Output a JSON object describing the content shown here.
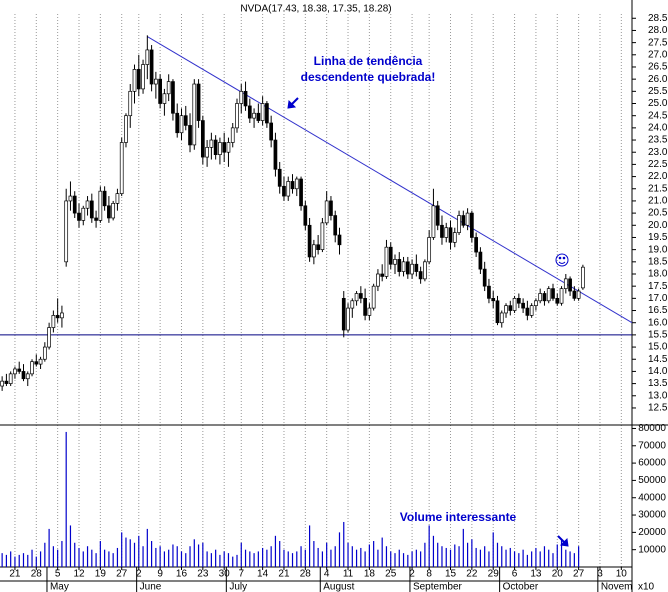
{
  "chart_data": {
    "type": "candlestick",
    "title": "NVDA(17.43, 18.38, 17.35, 18.28)",
    "categories": [
      null,
      null,
      null,
      "21",
      null,
      null,
      null,
      null,
      "28",
      null,
      null,
      null,
      null,
      "5",
      null,
      null,
      null,
      null,
      "12",
      null,
      null,
      null,
      null,
      "19",
      null,
      null,
      null,
      null,
      "27",
      null,
      null,
      null,
      "2",
      null,
      null,
      null,
      null,
      "9",
      null,
      null,
      null,
      null,
      "16",
      null,
      null,
      null,
      null,
      "23",
      null,
      null,
      null,
      null,
      "30",
      null,
      null,
      null,
      "7",
      null,
      null,
      null,
      null,
      "14",
      null,
      null,
      null,
      null,
      "21",
      null,
      null,
      null,
      null,
      "28",
      null,
      null,
      null,
      null,
      "4",
      null,
      null,
      null,
      null,
      "11",
      null,
      null,
      null,
      null,
      "18",
      null,
      null,
      null,
      null,
      "25",
      null,
      null,
      null,
      null,
      "2",
      null,
      null,
      null,
      "8",
      null,
      null,
      null,
      null,
      "15",
      null,
      null,
      null,
      null,
      "22",
      null,
      null,
      null,
      null,
      "29",
      null,
      null,
      null,
      null,
      "6",
      null,
      null,
      null,
      null,
      "13",
      null,
      null,
      null,
      null,
      "20",
      null,
      null,
      null,
      null,
      "27",
      null,
      null,
      null,
      null,
      "3",
      null,
      null,
      null,
      null,
      "10",
      null,
      null
    ],
    "months": [
      "May",
      "June",
      "July",
      "August",
      "September",
      "October",
      "Novem"
    ],
    "ohlc": [
      [
        13.4,
        13.8,
        13.2,
        13.6
      ],
      [
        13.6,
        13.9,
        13.4,
        13.5
      ],
      [
        13.5,
        14.0,
        13.4,
        13.9
      ],
      [
        13.9,
        14.2,
        13.7,
        14.1
      ],
      [
        14.1,
        14.4,
        13.9,
        14.0
      ],
      [
        14.0,
        14.3,
        13.6,
        13.7
      ],
      [
        13.7,
        14.0,
        13.4,
        13.9
      ],
      [
        13.9,
        14.5,
        13.8,
        14.4
      ],
      [
        14.4,
        14.7,
        14.2,
        14.3
      ],
      [
        14.3,
        14.6,
        14.1,
        14.5
      ],
      [
        14.5,
        15.2,
        14.4,
        15.0
      ],
      [
        15.0,
        16.0,
        14.9,
        15.8
      ],
      [
        15.8,
        16.5,
        15.6,
        16.3
      ],
      [
        16.3,
        17.0,
        16.0,
        16.2
      ],
      [
        16.2,
        16.7,
        15.8,
        16.4
      ],
      [
        18.5,
        21.5,
        18.3,
        21.0
      ],
      [
        21.0,
        21.8,
        20.6,
        21.2
      ],
      [
        21.2,
        21.4,
        20.3,
        20.5
      ],
      [
        20.5,
        20.9,
        19.9,
        20.2
      ],
      [
        20.2,
        20.8,
        20.0,
        20.7
      ],
      [
        20.7,
        21.2,
        20.4,
        21.0
      ],
      [
        21.0,
        21.3,
        20.1,
        20.3
      ],
      [
        20.3,
        20.6,
        19.9,
        20.2
      ],
      [
        20.2,
        21.6,
        20.1,
        21.4
      ],
      [
        21.4,
        21.6,
        20.6,
        20.8
      ],
      [
        20.8,
        21.2,
        20.1,
        20.3
      ],
      [
        20.3,
        21.0,
        20.2,
        20.9
      ],
      [
        20.9,
        21.5,
        20.6,
        21.3
      ],
      [
        21.3,
        23.6,
        21.2,
        23.4
      ],
      [
        23.4,
        24.6,
        23.2,
        24.5
      ],
      [
        24.5,
        25.8,
        24.0,
        25.5
      ],
      [
        25.5,
        26.6,
        25.0,
        26.4
      ],
      [
        26.4,
        27.0,
        25.3,
        25.6
      ],
      [
        25.6,
        26.8,
        25.4,
        26.6
      ],
      [
        26.6,
        27.8,
        26.0,
        27.2
      ],
      [
        27.2,
        27.4,
        25.5,
        25.8
      ],
      [
        25.8,
        26.3,
        25.2,
        26.0
      ],
      [
        26.0,
        26.2,
        24.8,
        25.0
      ],
      [
        25.0,
        25.6,
        24.5,
        25.4
      ],
      [
        25.4,
        26.2,
        25.1,
        25.9
      ],
      [
        25.9,
        26.0,
        24.3,
        24.6
      ],
      [
        24.6,
        25.0,
        23.6,
        23.8
      ],
      [
        23.8,
        24.8,
        23.5,
        24.5
      ],
      [
        24.5,
        24.9,
        23.9,
        24.1
      ],
      [
        24.1,
        24.6,
        23.0,
        23.3
      ],
      [
        23.3,
        26.0,
        23.1,
        25.8
      ],
      [
        25.8,
        26.0,
        24.0,
        24.3
      ],
      [
        24.3,
        24.5,
        22.5,
        22.8
      ],
      [
        22.8,
        23.5,
        22.4,
        23.2
      ],
      [
        23.2,
        23.8,
        22.7,
        23.5
      ],
      [
        23.5,
        23.7,
        22.7,
        22.9
      ],
      [
        22.9,
        23.6,
        22.5,
        23.4
      ],
      [
        23.4,
        23.8,
        22.6,
        23.0
      ],
      [
        23.0,
        23.6,
        22.4,
        23.4
      ],
      [
        23.4,
        24.2,
        23.2,
        24.0
      ],
      [
        24.0,
        25.2,
        23.8,
        25.0
      ],
      [
        25.0,
        25.8,
        24.6,
        25.5
      ],
      [
        25.5,
        25.9,
        24.7,
        24.9
      ],
      [
        24.9,
        25.2,
        24.2,
        24.4
      ],
      [
        24.4,
        24.8,
        24.0,
        24.6
      ],
      [
        24.6,
        25.0,
        24.2,
        24.3
      ],
      [
        24.3,
        25.3,
        24.1,
        25.0
      ],
      [
        25.0,
        25.1,
        24.0,
        24.2
      ],
      [
        24.2,
        24.5,
        23.2,
        23.5
      ],
      [
        23.5,
        23.8,
        22.0,
        22.3
      ],
      [
        22.3,
        22.6,
        21.3,
        21.6
      ],
      [
        21.6,
        22.0,
        21.0,
        21.2
      ],
      [
        21.2,
        22.0,
        21.0,
        21.8
      ],
      [
        21.8,
        22.1,
        21.3,
        21.5
      ],
      [
        21.5,
        22.0,
        21.2,
        21.9
      ],
      [
        21.9,
        22.0,
        20.6,
        20.8
      ],
      [
        20.8,
        21.0,
        19.8,
        20.0
      ],
      [
        20.0,
        20.3,
        18.5,
        18.7
      ],
      [
        18.7,
        19.4,
        18.4,
        19.2
      ],
      [
        19.2,
        19.6,
        18.8,
        19.0
      ],
      [
        19.0,
        20.3,
        18.9,
        20.1
      ],
      [
        20.1,
        21.4,
        20.0,
        21.0
      ],
      [
        21.0,
        21.2,
        20.2,
        20.4
      ],
      [
        20.4,
        20.6,
        19.3,
        19.6
      ],
      [
        19.6,
        19.9,
        18.8,
        19.2
      ],
      [
        17.0,
        17.3,
        15.4,
        15.7
      ],
      [
        15.7,
        16.8,
        15.6,
        16.6
      ],
      [
        16.6,
        17.0,
        16.2,
        16.9
      ],
      [
        16.9,
        17.3,
        16.7,
        17.2
      ],
      [
        17.2,
        17.5,
        16.8,
        17.0
      ],
      [
        17.0,
        17.4,
        16.1,
        16.3
      ],
      [
        16.3,
        16.8,
        16.1,
        16.6
      ],
      [
        16.6,
        17.6,
        16.5,
        17.5
      ],
      [
        17.5,
        18.2,
        17.3,
        18.0
      ],
      [
        18.0,
        18.4,
        17.7,
        17.9
      ],
      [
        17.9,
        19.4,
        17.8,
        19.1
      ],
      [
        19.1,
        19.3,
        18.2,
        18.4
      ],
      [
        18.4,
        18.8,
        18.0,
        18.6
      ],
      [
        18.6,
        18.9,
        17.9,
        18.1
      ],
      [
        18.1,
        18.7,
        17.9,
        18.5
      ],
      [
        18.5,
        18.7,
        17.8,
        18.0
      ],
      [
        18.0,
        18.6,
        17.8,
        18.4
      ],
      [
        18.4,
        18.8,
        17.9,
        18.1
      ],
      [
        18.1,
        18.3,
        17.6,
        17.8
      ],
      [
        17.8,
        18.6,
        17.7,
        18.5
      ],
      [
        18.5,
        19.8,
        18.4,
        19.5
      ],
      [
        19.5,
        21.5,
        19.4,
        20.8
      ],
      [
        20.8,
        21.0,
        19.8,
        20.0
      ],
      [
        20.0,
        20.4,
        19.2,
        19.5
      ],
      [
        19.5,
        20.1,
        19.3,
        19.9
      ],
      [
        19.9,
        20.2,
        19.0,
        19.3
      ],
      [
        19.3,
        19.9,
        19.1,
        19.7
      ],
      [
        19.7,
        20.6,
        19.6,
        20.4
      ],
      [
        20.4,
        20.6,
        19.9,
        20.0
      ],
      [
        20.0,
        20.7,
        19.8,
        20.5
      ],
      [
        20.5,
        20.6,
        19.3,
        19.5
      ],
      [
        19.5,
        19.7,
        18.7,
        18.9
      ],
      [
        18.9,
        19.1,
        18.0,
        18.2
      ],
      [
        18.2,
        18.5,
        17.3,
        17.5
      ],
      [
        17.5,
        17.8,
        16.8,
        17.0
      ],
      [
        17.0,
        17.3,
        16.6,
        16.9
      ],
      [
        16.9,
        17.1,
        15.9,
        16.0
      ],
      [
        16.0,
        16.5,
        15.8,
        16.4
      ],
      [
        16.4,
        16.8,
        16.2,
        16.7
      ],
      [
        16.7,
        16.9,
        16.3,
        16.5
      ],
      [
        16.5,
        17.1,
        16.4,
        17.0
      ],
      [
        17.0,
        17.2,
        16.6,
        16.8
      ],
      [
        16.8,
        17.0,
        16.4,
        16.6
      ],
      [
        16.6,
        16.9,
        16.1,
        16.3
      ],
      [
        16.3,
        16.8,
        16.2,
        16.7
      ],
      [
        16.7,
        17.0,
        16.5,
        16.9
      ],
      [
        16.9,
        17.4,
        16.8,
        17.2
      ],
      [
        17.2,
        17.3,
        16.7,
        16.9
      ],
      [
        16.9,
        17.5,
        16.8,
        17.4
      ],
      [
        17.4,
        17.6,
        16.9,
        17.0
      ],
      [
        17.0,
        17.2,
        16.7,
        16.8
      ],
      [
        16.8,
        17.5,
        16.7,
        17.4
      ],
      [
        17.4,
        18.0,
        17.2,
        17.8
      ],
      [
        17.8,
        17.9,
        17.1,
        17.3
      ],
      [
        17.3,
        17.5,
        16.9,
        17.0
      ],
      [
        17.0,
        17.4,
        16.9,
        17.3
      ],
      [
        17.43,
        18.38,
        17.35,
        18.28
      ],
      null,
      null,
      null,
      null,
      null,
      null,
      null,
      null,
      null,
      null,
      null,
      null
    ],
    "volume": [
      8000,
      7000,
      9000,
      6000,
      7000,
      8000,
      7000,
      10000,
      6000,
      9000,
      14000,
      22000,
      12000,
      10000,
      15000,
      78000,
      24000,
      14000,
      11000,
      9000,
      12000,
      10000,
      8000,
      15000,
      10000,
      9000,
      8000,
      11000,
      20000,
      17000,
      16000,
      14000,
      18000,
      12000,
      22000,
      15000,
      11000,
      12000,
      9000,
      10000,
      13000,
      12000,
      9000,
      8000,
      12000,
      16000,
      13000,
      14000,
      9000,
      8000,
      10000,
      7000,
      9000,
      8000,
      6000,
      7000,
      14000,
      10000,
      9000,
      8000,
      9000,
      11000,
      10000,
      12000,
      18000,
      15000,
      10000,
      9000,
      8000,
      9000,
      12000,
      10000,
      24000,
      15000,
      11000,
      9000,
      14000,
      10000,
      12000,
      20000,
      26000,
      14000,
      12000,
      10000,
      11000,
      9000,
      13000,
      15000,
      10000,
      17000,
      12000,
      9000,
      8000,
      10000,
      8000,
      7000,
      9000,
      10000,
      9000,
      14000,
      24000,
      18000,
      14000,
      12000,
      11000,
      10000,
      13000,
      12000,
      22000,
      14000,
      16000,
      11000,
      10000,
      12000,
      9000,
      20000,
      14000,
      12000,
      10000,
      11000,
      9000,
      8000,
      10000,
      7000,
      9000,
      11000,
      9000,
      12000,
      10000,
      8000,
      13000,
      16000,
      10000,
      9000,
      8000,
      12000,
      null,
      null,
      null,
      null,
      null,
      null,
      null,
      null,
      null,
      null,
      null,
      null
    ],
    "ylim": [
      11.8,
      29.25
    ],
    "yticks": [
      12.5,
      {
        "value": 13,
        "label": "13.0"
      },
      13.5,
      {
        "value": 14,
        "label": "14.0"
      },
      14.5,
      {
        "value": 15,
        "label": "15.0"
      },
      15.5,
      {
        "value": 16,
        "label": "16.0"
      },
      16.5,
      {
        "value": 17,
        "label": "17.0"
      },
      17.5,
      {
        "value": 18,
        "label": "18.0"
      },
      18.5,
      {
        "value": 19,
        "label": "19.0"
      },
      19.5,
      {
        "value": 20,
        "label": "20.0"
      },
      20.5,
      {
        "value": 21,
        "label": "21.0"
      },
      21.5,
      {
        "value": 22,
        "label": "22.0"
      },
      22.5,
      {
        "value": 23,
        "label": "23.0"
      },
      23.5,
      {
        "value": 24,
        "label": "24.0"
      },
      24.5,
      {
        "value": 25,
        "label": "25.0"
      },
      25.5,
      {
        "value": 26,
        "label": "26.0"
      },
      26.5,
      {
        "value": 27,
        "label": "27.0"
      },
      27.5,
      {
        "value": 28,
        "label": "28.0"
      },
      28.5
    ],
    "vlim": [
      0,
      82000
    ],
    "vticks": [
      10000,
      20000,
      30000,
      40000,
      50000,
      60000,
      70000,
      80000
    ],
    "volume_unit": "x10",
    "grid_x": true,
    "up_color": "#ffffff",
    "down_color": "#000000",
    "volume_color": "#0000cc",
    "trendline": {
      "start": 27.75,
      "end": 16.0,
      "color": "#3333cc"
    },
    "support_line": 15.5,
    "support_color": "#000080",
    "annotations": [
      "Linha de tendência",
      "descendente quebrada!",
      "Volume interessante"
    ],
    "annotation_color": "#0000cc"
  }
}
